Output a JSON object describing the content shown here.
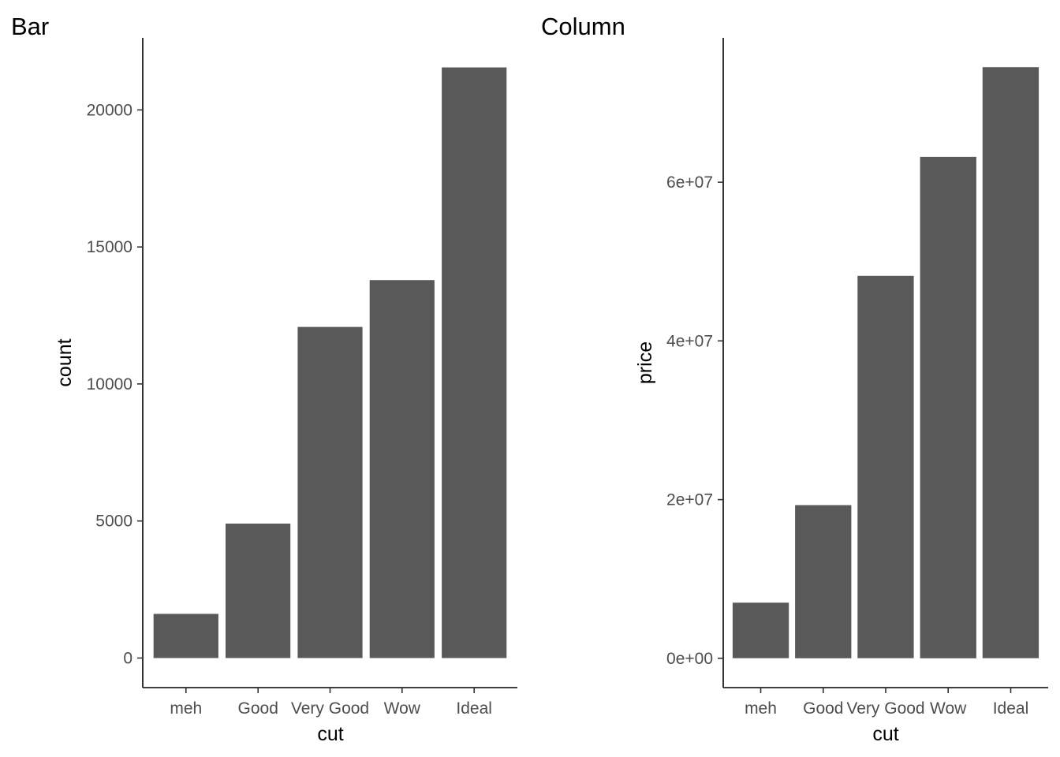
{
  "colors": {
    "bar_fill": "#595959",
    "axis_line": "#000000",
    "tick_text": "#4d4d4d",
    "background": "#ffffff"
  },
  "chart_data": [
    {
      "type": "bar",
      "title": "Bar",
      "xlabel": "cut",
      "ylabel": "count",
      "categories": [
        "meh",
        "Good",
        "Very Good",
        "Wow",
        "Ideal"
      ],
      "values": [
        1610,
        4906,
        12082,
        13791,
        21551
      ],
      "ylim": [
        -1080,
        22630
      ],
      "yticks": [
        0,
        5000,
        10000,
        15000,
        20000
      ],
      "ytick_labels": [
        "0",
        "5000",
        "10000",
        "15000",
        "20000"
      ],
      "grid": false,
      "legend": "none"
    },
    {
      "type": "bar",
      "title": "Column",
      "xlabel": "cut",
      "ylabel": "price",
      "categories": [
        "meh",
        "Good",
        "Very Good",
        "Wow",
        "Ideal"
      ],
      "values": [
        7000000,
        19300000,
        48200000,
        63200000,
        74500000
      ],
      "ylim": [
        -3700000,
        78200000
      ],
      "yticks": [
        0,
        20000000,
        40000000,
        60000000
      ],
      "ytick_labels": [
        "0e+00",
        "2e+07",
        "4e+07",
        "6e+07"
      ],
      "grid": false,
      "legend": "none"
    }
  ]
}
